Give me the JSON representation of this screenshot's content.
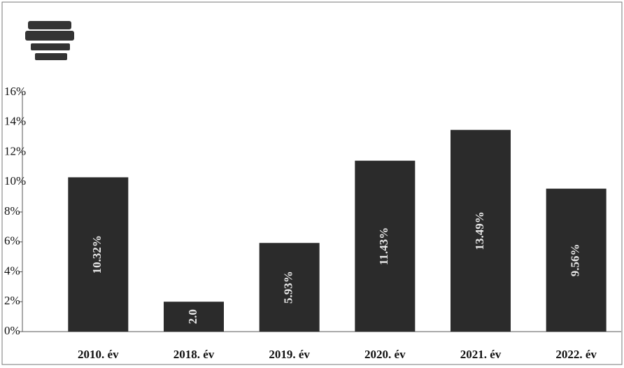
{
  "chart_data": {
    "type": "bar",
    "categories": [
      "2010. év",
      "2018. év",
      "2019. év",
      "2020. év",
      "2021. év",
      "2022. év"
    ],
    "values": [
      10.32,
      2.0,
      5.93,
      11.43,
      13.49,
      9.56
    ],
    "value_labels": [
      "10.32%",
      "2.0",
      "5.93%",
      "11.43%",
      "13.49%",
      "9.56%"
    ],
    "color": "#2b2b2b",
    "ylim": [
      0,
      16
    ],
    "yticks": [
      {
        "value": 0,
        "label": "0%"
      },
      {
        "value": 2,
        "label": "2%"
      },
      {
        "value": 4,
        "label": "4%"
      },
      {
        "value": 6,
        "label": "6%"
      },
      {
        "value": 8,
        "label": "8%"
      },
      {
        "value": 10,
        "label": "10%"
      },
      {
        "value": 12,
        "label": "12%"
      },
      {
        "value": 14,
        "label": "14%"
      },
      {
        "value": 16,
        "label": "16%"
      }
    ],
    "grid": false
  }
}
